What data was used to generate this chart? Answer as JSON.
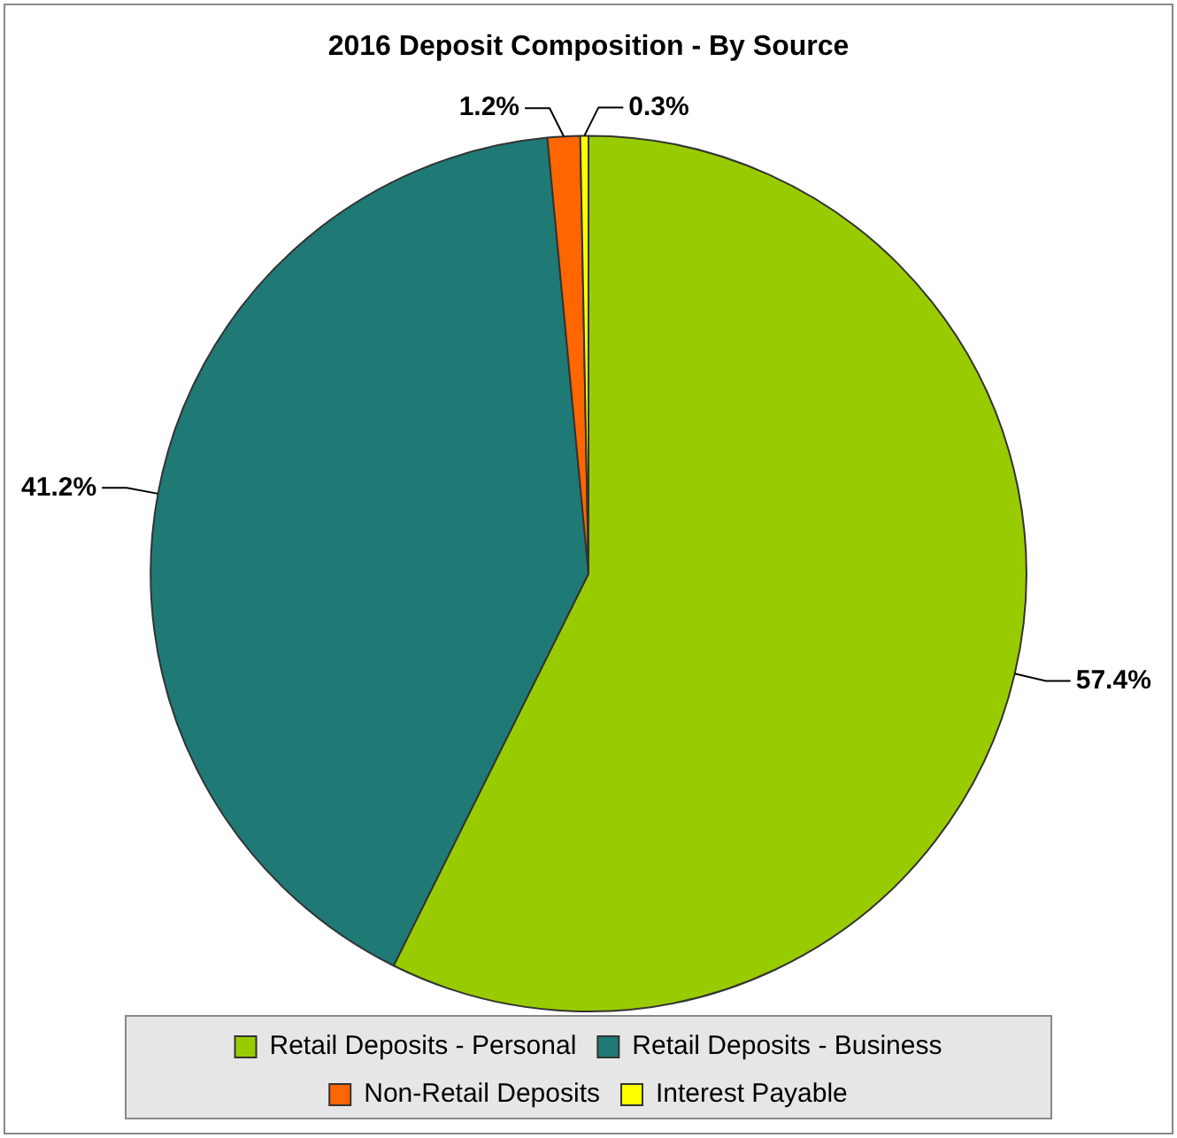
{
  "chart_data": {
    "type": "pie",
    "title": "2016 Deposit Composition - By Source",
    "categories": [
      "Retail Deposits - Personal",
      "Retail Deposits - Business",
      "Non-Retail Deposits",
      "Interest Payable"
    ],
    "values": [
      57.4,
      41.2,
      1.2,
      0.3
    ],
    "colors": [
      "#99cc00",
      "#1f7a76",
      "#ff6600",
      "#ffff00"
    ],
    "value_labels": [
      "57.4%",
      "41.2%",
      "1.2%",
      "0.3%"
    ],
    "legend": "bottom"
  }
}
